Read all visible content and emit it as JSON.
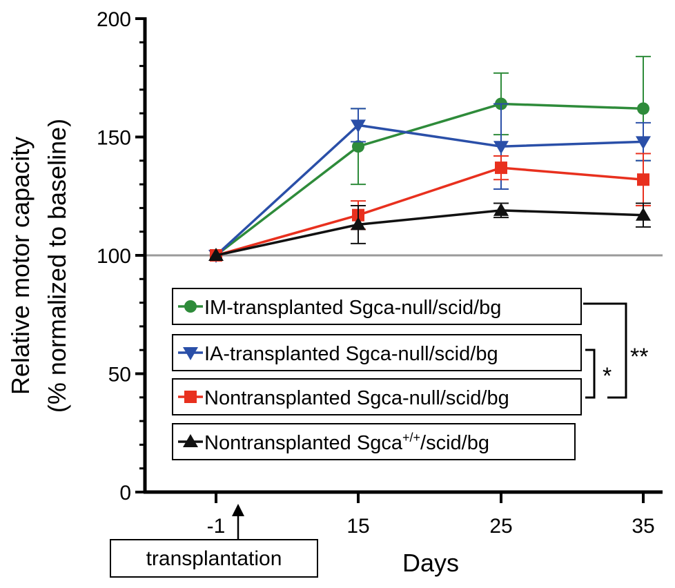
{
  "chart_data": {
    "type": "line",
    "ylabel": "Relative motor capacity",
    "ylabel2": "(% normalized to baseline)",
    "xlabel": "Days",
    "ylim": [
      0,
      200
    ],
    "yticks": [
      0,
      50,
      100,
      150,
      200
    ],
    "x_categories": [
      "-1",
      "15",
      "25",
      "35"
    ],
    "reference_line": 100,
    "transplant_label": "transplantation",
    "series": [
      {
        "key": "im",
        "name": "IM-transplanted Sgca-null/scid/bg",
        "color": "#2e8b3a",
        "marker": "circle",
        "values": [
          100,
          146,
          164,
          162
        ],
        "errors": [
          0,
          16,
          13,
          22
        ]
      },
      {
        "key": "ia",
        "name": "IA-transplanted Sgca-null/scid/bg",
        "color": "#2a4fa8",
        "marker": "triangle-down",
        "values": [
          100,
          155,
          146,
          148
        ],
        "errors": [
          0,
          7,
          18,
          8
        ]
      },
      {
        "key": "non",
        "name": "Nontransplanted Sgca-null/scid/bg",
        "color": "#e8301e",
        "marker": "square",
        "values": [
          100,
          117,
          137,
          132
        ],
        "errors": [
          0,
          6,
          5,
          11
        ]
      },
      {
        "key": "wt",
        "name": "Nontransplanted Sgca+/+/scid/bg",
        "color": "#111111",
        "marker": "triangle-up",
        "values": [
          100,
          113,
          119,
          117
        ],
        "errors": [
          0,
          8,
          3,
          5
        ]
      }
    ],
    "legend": [
      {
        "prefix": "IM-transplanted Sgca-null/scid/bg"
      },
      {
        "prefix": "IA-transplanted Sgca-null/scid/bg"
      },
      {
        "prefix": "Nontransplanted Sgca-null/scid/bg"
      },
      {
        "prefix": "Nontransplanted Sgca",
        "sup": "+/+",
        "suffix": "/scid/bg"
      }
    ],
    "significance": [
      {
        "label": "*",
        "between": [
          "IA-transplanted Sgca-null/scid/bg",
          "Nontransplanted Sgca-null/scid/bg"
        ]
      },
      {
        "label": "**",
        "between": [
          "IM-transplanted Sgca-null/scid/bg",
          "Nontransplanted Sgca-null/scid/bg"
        ]
      }
    ]
  }
}
